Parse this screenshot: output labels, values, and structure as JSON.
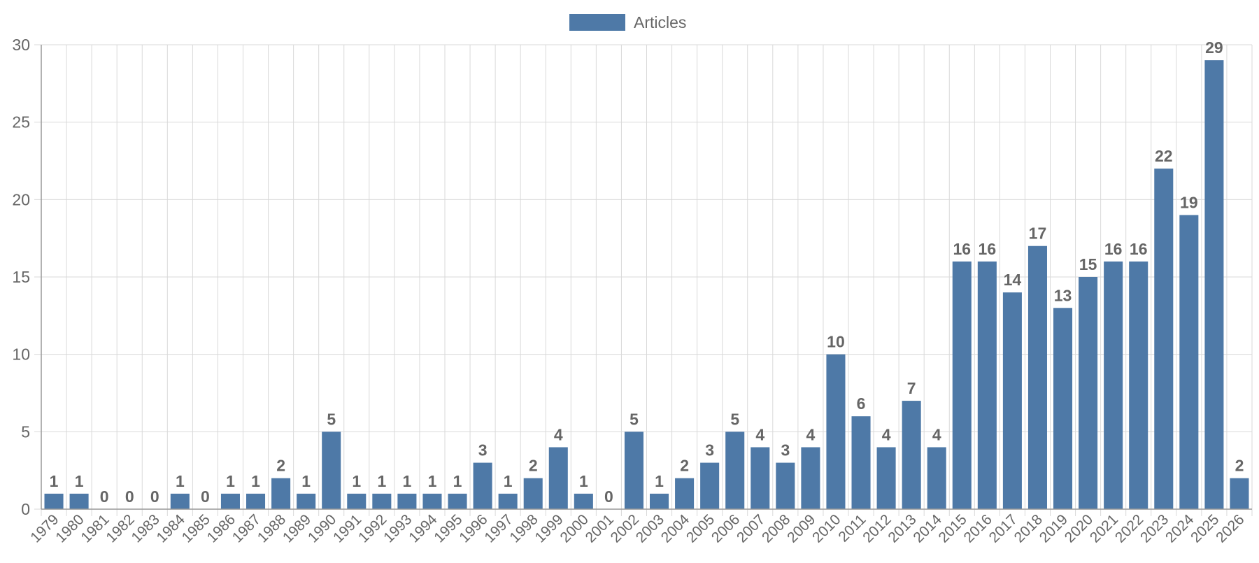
{
  "chart_data": {
    "type": "bar",
    "categories": [
      "1979",
      "1980",
      "1981",
      "1982",
      "1983",
      "1984",
      "1985",
      "1986",
      "1987",
      "1988",
      "1989",
      "1990",
      "1991",
      "1992",
      "1993",
      "1994",
      "1995",
      "1996",
      "1997",
      "1998",
      "1999",
      "2000",
      "2001",
      "2002",
      "2003",
      "2004",
      "2005",
      "2006",
      "2007",
      "2008",
      "2009",
      "2010",
      "2011",
      "2012",
      "2013",
      "2014",
      "2015",
      "2016",
      "2017",
      "2018",
      "2019",
      "2020",
      "2021",
      "2022",
      "2023",
      "2024",
      "2025",
      "2026"
    ],
    "series": [
      {
        "name": "Articles",
        "values": [
          1,
          1,
          0,
          0,
          0,
          1,
          0,
          1,
          1,
          2,
          1,
          5,
          1,
          1,
          1,
          1,
          1,
          3,
          1,
          2,
          4,
          1,
          0,
          5,
          1,
          2,
          3,
          5,
          4,
          3,
          4,
          10,
          6,
          4,
          7,
          4,
          16,
          16,
          14,
          17,
          13,
          15,
          16,
          16,
          22,
          19,
          29,
          2
        ]
      }
    ],
    "title": "",
    "xlabel": "",
    "ylabel": "",
    "ylim": [
      0,
      30
    ],
    "yticks": [
      0,
      5,
      10,
      15,
      20,
      25,
      30
    ],
    "grid": true,
    "legend_position": "top-center",
    "data_labels": true,
    "colors": {
      "bar": "#4e79a7",
      "grid": "#d9d9d9",
      "axis": "#999999",
      "text": "#666666"
    }
  }
}
